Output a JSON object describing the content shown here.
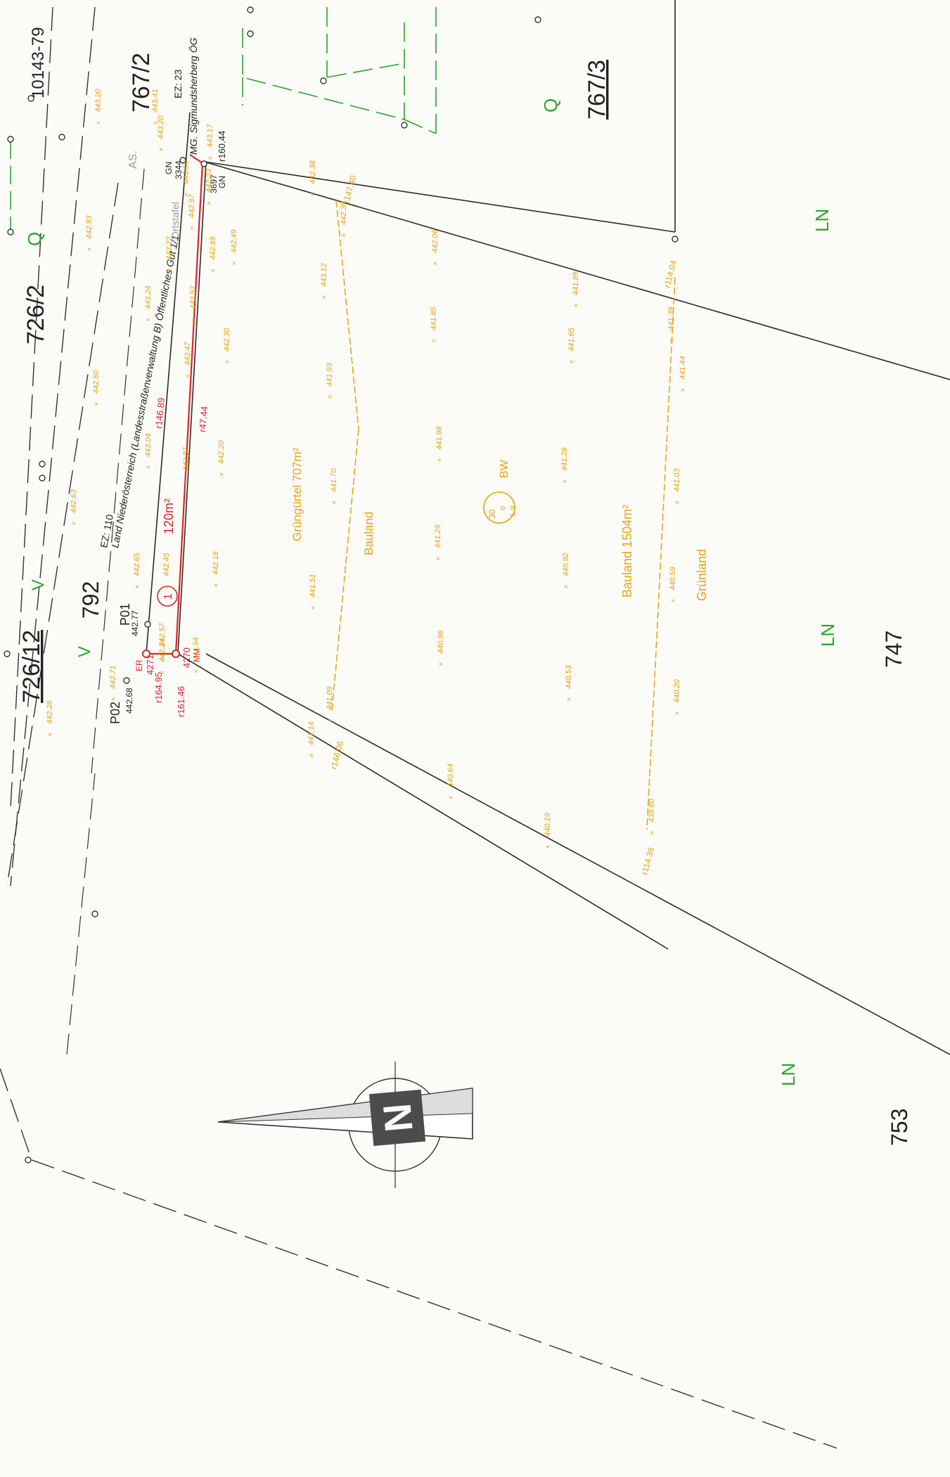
{
  "parcels": {
    "p726_2": "726/2",
    "p726_12": "726/12",
    "p767_2": "767/2",
    "p767_3": "767/3",
    "p792": "792",
    "p747": "747",
    "p753": "753",
    "p10143": "10143-79"
  },
  "land_use": {
    "q": "Q",
    "v": "V",
    "ln": "LN",
    "bw": "BW",
    "gruenguertel": "Grüngürtel 707m²",
    "bauland": "Bauland",
    "bauland_area": "Bauland 1504m²",
    "gruenland": "Grünland"
  },
  "road_owner": {
    "ez": "EZ: 110",
    "owner": "Land Niederösterreich (Landesstraßenverwaltung B) Öffentliches Gut 1/1"
  },
  "upper_owner": {
    "ez": "EZ: 23",
    "owner": "MG. Sigmundsherberg ÖG"
  },
  "labels": {
    "as": "AS.",
    "ortstafel": "Ortstafel",
    "gn": "GN",
    "mm": "MM",
    "er": "ER",
    "area_120": "120m²",
    "circle_1": "1",
    "p01": "P01",
    "p02": "P02",
    "pt_3344": "3344",
    "pt_3697": "3697",
    "pt_4270": "4270",
    "pt_4271": "4271",
    "p01_h": "442.77",
    "p02_h": "442.68",
    "zone_30": "30",
    "zone_o": "o",
    "zone_l11": "L II"
  },
  "distances": {
    "r164_95": "r164.95",
    "r161_46": "r161.46",
    "r160_44": "r160.44",
    "r146_89": "r146.89",
    "r47_44": "r47.44",
    "r147_40": "r147.40",
    "r146_06": "r146.06",
    "r114_04": "r114.04",
    "r114_36": "r114.36"
  },
  "heights": [
    "443.20",
    "443.41",
    "443.20",
    "443.17",
    "443.04",
    "442.33",
    "443.22",
    "442.97",
    "442.99",
    "442.38",
    "442.39",
    "443.12",
    "442.49",
    "442.06",
    "443.24",
    "442.57",
    "441.89",
    "442.93",
    "442.60",
    "443.47",
    "442.30",
    "441.93",
    "441.85",
    "441.65",
    "441.39",
    "441.44",
    "443.04",
    "442.37",
    "442.20",
    "441.98",
    "441.70",
    "441.28",
    "441.03",
    "442.63",
    "442.65",
    "442.45",
    "442.18",
    "441.29",
    "440.92",
    "441.51",
    "440.59",
    "442.57",
    "442.24",
    "441.94",
    "440.96",
    "440.53",
    "441.09",
    "440.20",
    "442.71",
    "442.28",
    "441.14",
    "440.64",
    "440.19",
    "439.80"
  ],
  "colors": {
    "boundary": "#2b2b2b",
    "survey_orange": "#e8a312",
    "new_boundary_red": "#d9242c",
    "zoning_green": "#2aa52a"
  },
  "icons": {
    "north_arrow": "north-arrow-icon"
  }
}
